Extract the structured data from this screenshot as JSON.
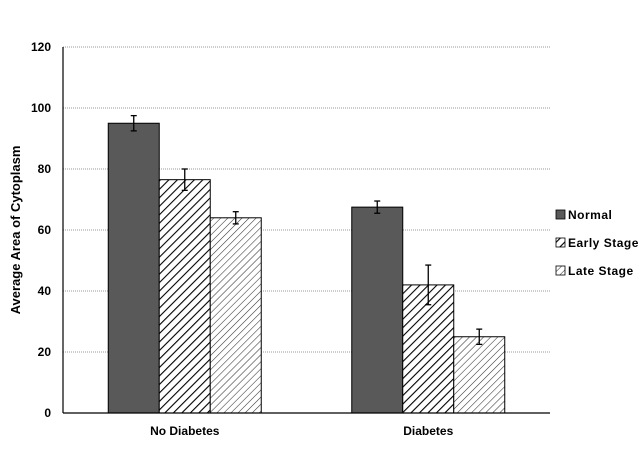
{
  "chart_data": {
    "type": "bar",
    "title": "",
    "xlabel": "",
    "ylabel": "Average Area of Cytoplasm",
    "ylim": [
      0,
      120
    ],
    "yticks": [
      0,
      20,
      40,
      60,
      80,
      100,
      120
    ],
    "grid": true,
    "legend_position": "right",
    "categories": [
      "No Diabetes",
      "Diabetes"
    ],
    "series": [
      {
        "name": "Normal",
        "values": [
          95,
          67.5
        ],
        "errors": [
          2.5,
          2
        ],
        "fill": "solid",
        "color": "#595959"
      },
      {
        "name": "Early Stage",
        "values": [
          76.5,
          42
        ],
        "errors": [
          3.5,
          6.5
        ],
        "fill": "hatch-dense",
        "color": "#000000"
      },
      {
        "name": "Late Stage",
        "values": [
          64,
          25
        ],
        "errors": [
          2,
          2.5
        ],
        "fill": "hatch-light",
        "color": "#000000"
      }
    ]
  }
}
